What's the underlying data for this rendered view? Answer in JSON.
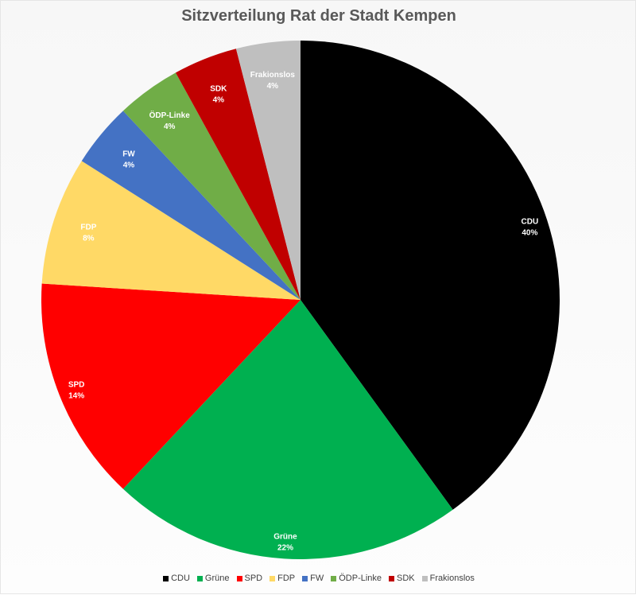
{
  "chart_data": {
    "type": "pie",
    "title": "Sitzverteilung Rat der Stadt Kempen",
    "legend_position": "bottom",
    "slices": [
      {
        "label": "CDU",
        "value": 40,
        "value_label": "40%",
        "color": "#000000",
        "text_color": "#ffffff"
      },
      {
        "label": "Grüne",
        "value": 22,
        "value_label": "22%",
        "color": "#00b050",
        "text_color": "#ffffff"
      },
      {
        "label": "SPD",
        "value": 14,
        "value_label": "14%",
        "color": "#ff0000",
        "text_color": "#ffffff"
      },
      {
        "label": "FDP",
        "value": 8,
        "value_label": "8%",
        "color": "#ffd966",
        "text_color": "#ffffff"
      },
      {
        "label": "FW",
        "value": 4,
        "value_label": "4%",
        "color": "#4472c4",
        "text_color": "#ffffff"
      },
      {
        "label": "ÖDP-Linke",
        "value": 4,
        "value_label": "4%",
        "color": "#70ad47",
        "text_color": "#ffffff"
      },
      {
        "label": "SDK",
        "value": 4,
        "value_label": "4%",
        "color": "#c00000",
        "text_color": "#ffffff"
      },
      {
        "label": "Frakionslos",
        "value": 4,
        "value_label": "4%",
        "color": "#bfbfbf",
        "text_color": "#ffffff"
      }
    ]
  }
}
